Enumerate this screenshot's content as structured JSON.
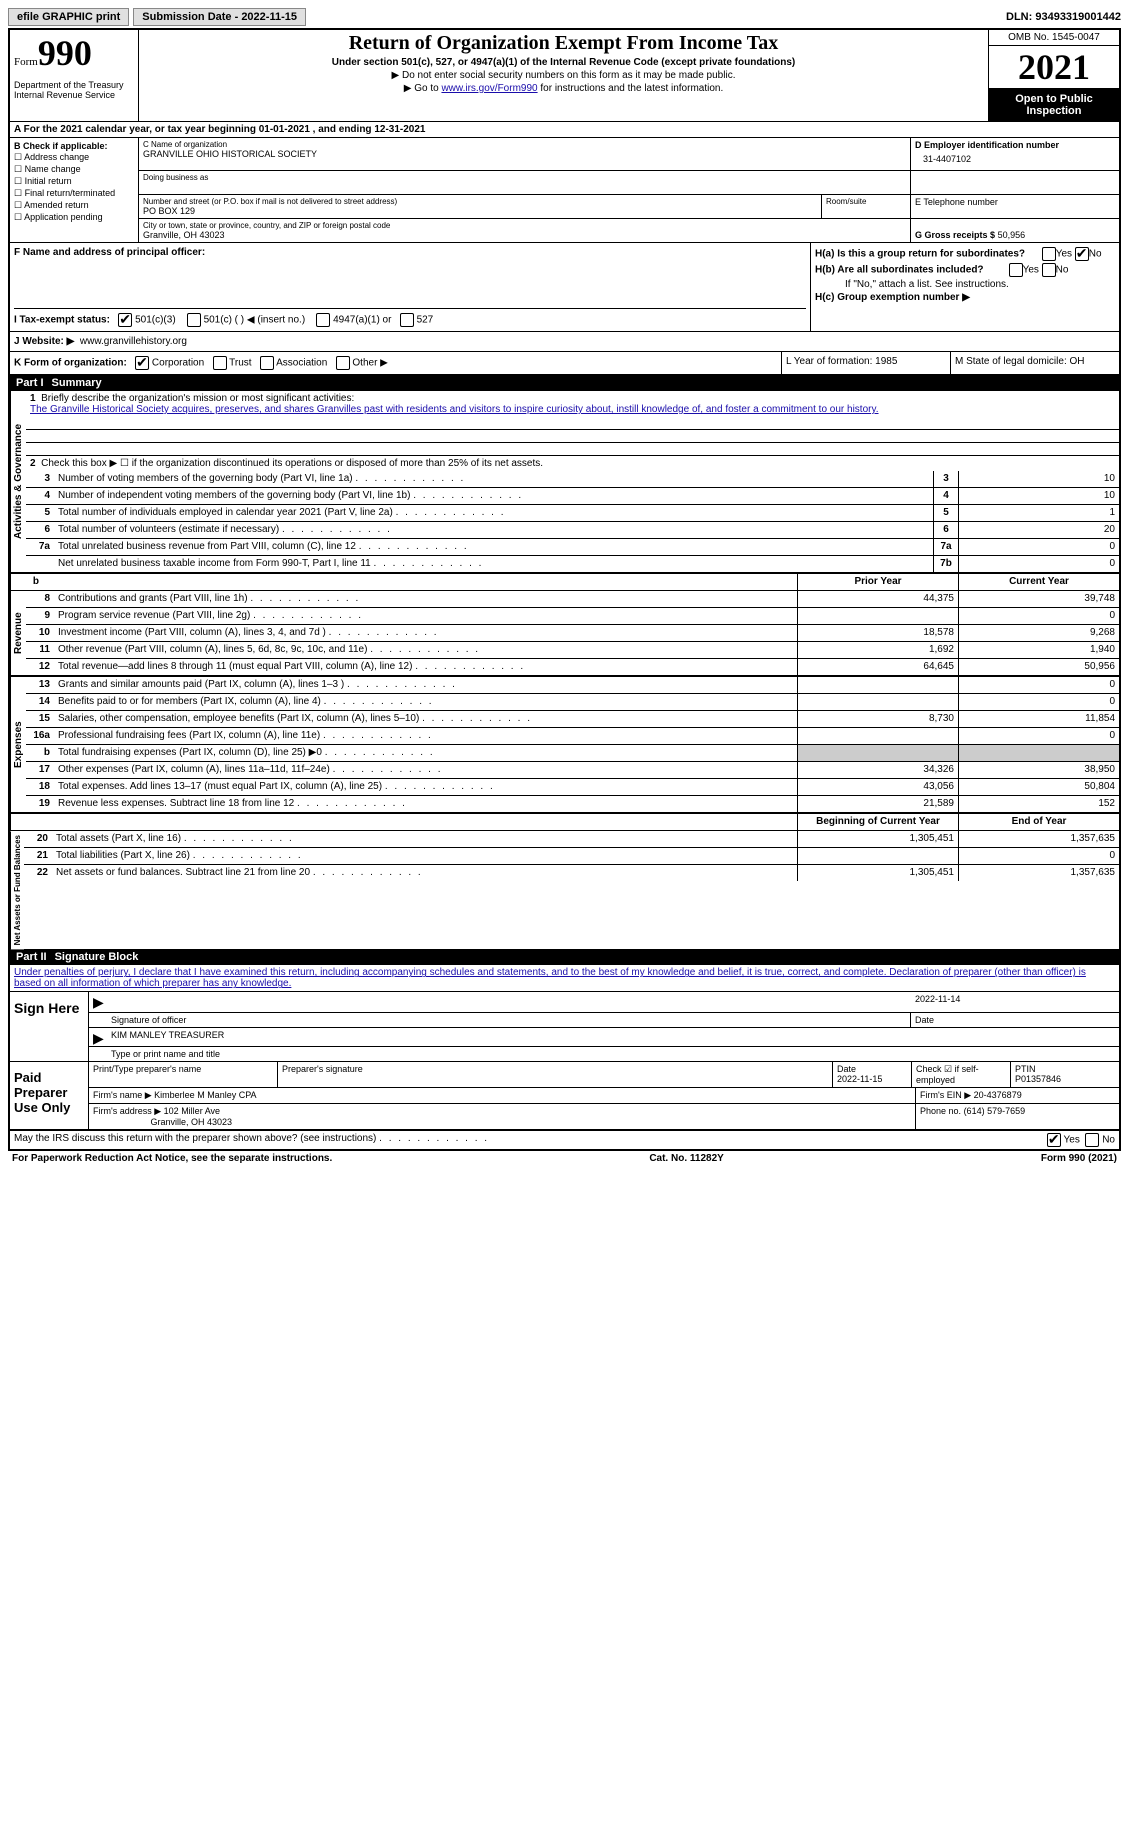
{
  "topbar": {
    "efile": "efile GRAPHIC print",
    "submission": "Submission Date - 2022-11-15",
    "dln": "DLN: 93493319001442"
  },
  "header": {
    "form_word": "Form",
    "form_num": "990",
    "dept": "Department of the Treasury\nInternal Revenue Service",
    "title": "Return of Organization Exempt From Income Tax",
    "subtitle": "Under section 501(c), 527, or 4947(a)(1) of the Internal Revenue Code (except private foundations)",
    "note1": "▶ Do not enter social security numbers on this form as it may be made public.",
    "note2_pre": "▶ Go to ",
    "note2_link": "www.irs.gov/Form990",
    "note2_post": " for instructions and the latest information.",
    "omb": "OMB No. 1545-0047",
    "year": "2021",
    "open": "Open to Public Inspection"
  },
  "rowA": "A For the 2021 calendar year, or tax year beginning 01-01-2021    , and ending 12-31-2021",
  "colB": {
    "label": "B Check if applicable:",
    "items": [
      "Address change",
      "Name change",
      "Initial return",
      "Final return/terminated",
      "Amended return",
      "Application pending"
    ]
  },
  "colC": {
    "name_label": "C Name of organization",
    "name": "GRANVILLE OHIO HISTORICAL SOCIETY",
    "dba_label": "Doing business as",
    "addr_label": "Number and street (or P.O. box if mail is not delivered to street address)",
    "room_label": "Room/suite",
    "addr": "PO BOX 129",
    "city_label": "City or town, state or province, country, and ZIP or foreign postal code",
    "city": "Granville, OH  43023"
  },
  "colD": {
    "ein_label": "D Employer identification number",
    "ein": "31-4407102",
    "phone_label": "E Telephone number",
    "gross_label": "G Gross receipts $",
    "gross": "50,956"
  },
  "colF": {
    "label": "F  Name and address of principal officer:"
  },
  "colH": {
    "a": "H(a)  Is this a group return for subordinates?",
    "b": "H(b)  Are all subordinates included?",
    "b_note": "If \"No,\" attach a list. See instructions.",
    "c": "H(c)  Group exemption number ▶",
    "yes": "Yes",
    "no": "No"
  },
  "rowI": {
    "label": "I   Tax-exempt status:",
    "opts": [
      "501(c)(3)",
      "501(c) (  ) ◀ (insert no.)",
      "4947(a)(1) or",
      "527"
    ]
  },
  "rowJ": {
    "label": "J   Website: ▶",
    "val": "www.granvillehistory.org"
  },
  "rowK": {
    "label": "K Form of organization:",
    "opts": [
      "Corporation",
      "Trust",
      "Association",
      "Other ▶"
    ],
    "L": "L Year of formation: 1985",
    "M": "M State of legal domicile: OH"
  },
  "part1": {
    "header_num": "Part I",
    "header_title": "Summary",
    "q1_label": "Briefly describe the organization's mission or most significant activities:",
    "q1_text": "The Granville Historical Society acquires, preserves, and shares Granvilles past with residents and visitors to inspire curiosity about, instill knowledge of, and foster a commitment to our history.",
    "q2": "Check this box ▶ ☐  if the organization discontinued its operations or disposed of more than 25% of its net assets.",
    "governance_label": "Activities & Governance",
    "revenue_label": "Revenue",
    "expenses_label": "Expenses",
    "netassets_label": "Net Assets or Fund Balances",
    "rows_gov": [
      {
        "n": "3",
        "t": "Number of voting members of the governing body (Part VI, line 1a)",
        "box": "3",
        "v": "10"
      },
      {
        "n": "4",
        "t": "Number of independent voting members of the governing body (Part VI, line 1b)",
        "box": "4",
        "v": "10"
      },
      {
        "n": "5",
        "t": "Total number of individuals employed in calendar year 2021 (Part V, line 2a)",
        "box": "5",
        "v": "1"
      },
      {
        "n": "6",
        "t": "Total number of volunteers (estimate if necessary)",
        "box": "6",
        "v": "20"
      },
      {
        "n": "7a",
        "t": "Total unrelated business revenue from Part VIII, column (C), line 12",
        "box": "7a",
        "v": "0"
      },
      {
        "n": "",
        "t": "Net unrelated business taxable income from Form 990-T, Part I, line 11",
        "box": "7b",
        "v": "0"
      }
    ],
    "col_prior": "Prior Year",
    "col_current": "Current Year",
    "rows_rev": [
      {
        "n": "8",
        "t": "Contributions and grants (Part VIII, line 1h)",
        "p": "44,375",
        "c": "39,748"
      },
      {
        "n": "9",
        "t": "Program service revenue (Part VIII, line 2g)",
        "p": "",
        "c": "0"
      },
      {
        "n": "10",
        "t": "Investment income (Part VIII, column (A), lines 3, 4, and 7d )",
        "p": "18,578",
        "c": "9,268"
      },
      {
        "n": "11",
        "t": "Other revenue (Part VIII, column (A), lines 5, 6d, 8c, 9c, 10c, and 11e)",
        "p": "1,692",
        "c": "1,940"
      },
      {
        "n": "12",
        "t": "Total revenue—add lines 8 through 11 (must equal Part VIII, column (A), line 12)",
        "p": "64,645",
        "c": "50,956"
      }
    ],
    "rows_exp": [
      {
        "n": "13",
        "t": "Grants and similar amounts paid (Part IX, column (A), lines 1–3 )",
        "p": "",
        "c": "0"
      },
      {
        "n": "14",
        "t": "Benefits paid to or for members (Part IX, column (A), line 4)",
        "p": "",
        "c": "0"
      },
      {
        "n": "15",
        "t": "Salaries, other compensation, employee benefits (Part IX, column (A), lines 5–10)",
        "p": "8,730",
        "c": "11,854"
      },
      {
        "n": "16a",
        "t": "Professional fundraising fees (Part IX, column (A), line 11e)",
        "p": "",
        "c": "0"
      },
      {
        "n": "b",
        "t": "Total fundraising expenses (Part IX, column (D), line 25) ▶0",
        "p": "grey",
        "c": "grey"
      },
      {
        "n": "17",
        "t": "Other expenses (Part IX, column (A), lines 11a–11d, 11f–24e)",
        "p": "34,326",
        "c": "38,950"
      },
      {
        "n": "18",
        "t": "Total expenses. Add lines 13–17 (must equal Part IX, column (A), line 25)",
        "p": "43,056",
        "c": "50,804"
      },
      {
        "n": "19",
        "t": "Revenue less expenses. Subtract line 18 from line 12",
        "p": "21,589",
        "c": "152"
      }
    ],
    "col_begin": "Beginning of Current Year",
    "col_end": "End of Year",
    "rows_net": [
      {
        "n": "20",
        "t": "Total assets (Part X, line 16)",
        "p": "1,305,451",
        "c": "1,357,635"
      },
      {
        "n": "21",
        "t": "Total liabilities (Part X, line 26)",
        "p": "",
        "c": "0"
      },
      {
        "n": "22",
        "t": "Net assets or fund balances. Subtract line 21 from line 20",
        "p": "1,305,451",
        "c": "1,357,635"
      }
    ]
  },
  "part2": {
    "header_num": "Part II",
    "header_title": "Signature Block",
    "declare": "Under penalties of perjury, I declare that I have examined this return, including accompanying schedules and statements, and to the best of my knowledge and belief, it is true, correct, and complete. Declaration of preparer (other than officer) is based on all information of which preparer has any knowledge.",
    "sign_here": "Sign Here",
    "sig_officer": "Signature of officer",
    "sig_date": "2022-11-14",
    "date_label": "Date",
    "name_title": "KIM MANLEY TREASURER",
    "type_name": "Type or print name and title",
    "paid_prep": "Paid Preparer Use Only",
    "prep_name_label": "Print/Type preparer's name",
    "prep_sig_label": "Preparer's signature",
    "prep_date": "2022-11-15",
    "check_if": "Check ☑ if self-employed",
    "ptin_label": "PTIN",
    "ptin": "P01357846",
    "firm_name_label": "Firm's name    ▶",
    "firm_name": "Kimberlee M Manley CPA",
    "firm_ein_label": "Firm's EIN ▶",
    "firm_ein": "20-4376879",
    "firm_addr_label": "Firm's address ▶",
    "firm_addr": "102 Miller Ave",
    "firm_city": "Granville, OH  43023",
    "phone_label": "Phone no.",
    "phone": "(614) 579-7659",
    "discuss": "May the IRS discuss this return with the preparer shown above? (see instructions)",
    "yes": "Yes",
    "no": "No"
  },
  "footer": {
    "left": "For Paperwork Reduction Act Notice, see the separate instructions.",
    "center": "Cat. No. 11282Y",
    "right": "Form 990 (2021)"
  }
}
